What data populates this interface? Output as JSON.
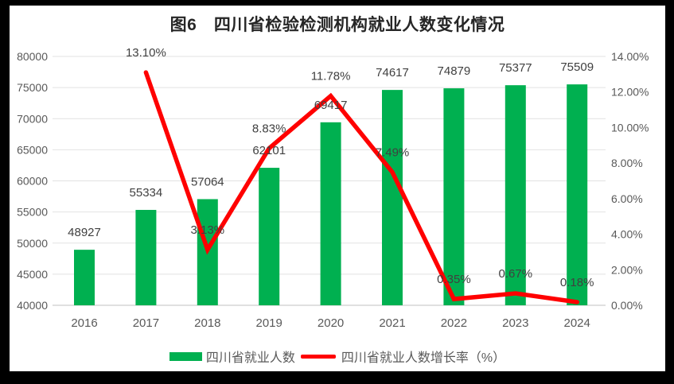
{
  "chart_data": {
    "type": "combo",
    "title": "图6　四川省检验检测机构就业人数变化情况",
    "categories": [
      "2016",
      "2017",
      "2018",
      "2019",
      "2020",
      "2021",
      "2022",
      "2023",
      "2024"
    ],
    "series": [
      {
        "name": "四川省就业人数",
        "type": "bar",
        "axis": "left",
        "values": [
          48927,
          55334,
          57064,
          62101,
          69417,
          74617,
          74879,
          75377,
          75509
        ],
        "labels": [
          "48927",
          "55334",
          "57064",
          "62101",
          "69417",
          "74617",
          "74879",
          "75377",
          "75509"
        ],
        "color": "#00B050"
      },
      {
        "name": "四川省就业人数增长率（%）",
        "type": "line",
        "axis": "right",
        "values": [
          null,
          13.1,
          3.13,
          8.83,
          11.78,
          7.49,
          0.35,
          0.67,
          0.18
        ],
        "labels": [
          "",
          "13.10%",
          "3.13%",
          "8.83%",
          "11.78%",
          "7.49%",
          "0.35%",
          "0.67%",
          "0.18%"
        ],
        "color": "#FF0000"
      }
    ],
    "y_left": {
      "min": 40000,
      "max": 80000,
      "step": 5000,
      "tick_labels": [
        "40000",
        "45000",
        "50000",
        "55000",
        "60000",
        "65000",
        "70000",
        "75000",
        "80000"
      ]
    },
    "y_right": {
      "min": 0,
      "max": 14,
      "step": 2,
      "tick_labels": [
        "0.00%",
        "2.00%",
        "4.00%",
        "6.00%",
        "8.00%",
        "10.00%",
        "12.00%",
        "14.00%"
      ]
    },
    "grid": "horizontal",
    "legend_position": "bottom",
    "colors": {
      "bar": "#00B050",
      "line": "#FF0000",
      "axis_text": "#595959",
      "data_label": "#404040",
      "title_text": "#262626",
      "gridline": "#E2E2E2",
      "axis_line": "#D6D6D6",
      "chart_bg": "#FFFFFF",
      "frame_bg": "#000000"
    }
  }
}
